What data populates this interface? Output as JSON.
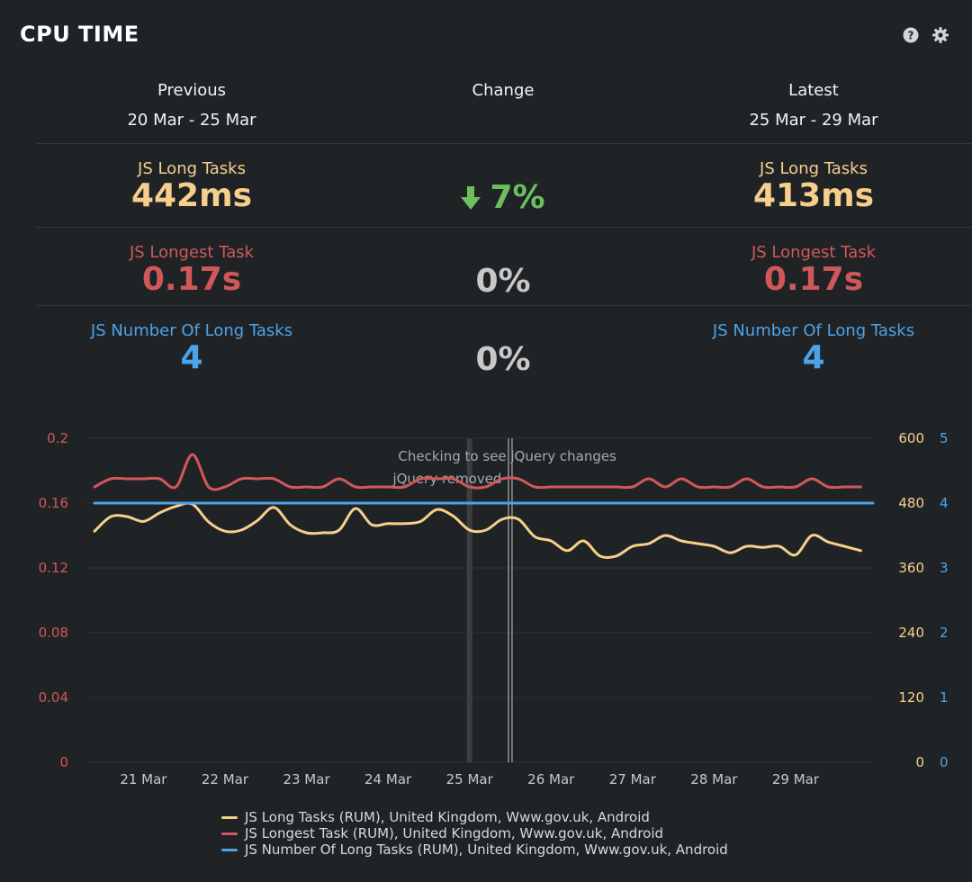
{
  "header": {
    "title": "CPU TIME",
    "help_icon": "help-circle-icon",
    "settings_icon": "gear-icon"
  },
  "columns": {
    "previous": {
      "title": "Previous",
      "range": "20 Mar - 25 Mar"
    },
    "change": {
      "title": "Change"
    },
    "latest": {
      "title": "Latest",
      "range": "25 Mar - 29 Mar"
    }
  },
  "metrics": [
    {
      "label": "JS Long Tasks",
      "previous": "442ms",
      "change": "7%",
      "change_direction": "down",
      "latest": "413ms",
      "color": "#f6cf8c"
    },
    {
      "label": "JS Longest Task",
      "previous": "0.17s",
      "change": "0%",
      "latest": "0.17s",
      "color": "#d0585a"
    },
    {
      "label": "JS Number Of Long Tasks",
      "previous": "4",
      "change": "0%",
      "latest": "4",
      "color": "#4da3e8"
    }
  ],
  "colors": {
    "background": "#202326",
    "positive_change": "#6dbe5e",
    "neutral_change": "#c8c8c8"
  },
  "chart_data": {
    "type": "line",
    "x_tick_labels": [
      "21 Mar",
      "22 Mar",
      "23 Mar",
      "24 Mar",
      "25 Mar",
      "26 Mar",
      "27 Mar",
      "28 Mar",
      "29 Mar"
    ],
    "x_range": [
      20.3,
      29.95
    ],
    "y_left": {
      "ticks": [
        "0",
        "0.04",
        "0.08",
        "0.12",
        "0.16",
        "0.2"
      ],
      "range": [
        0,
        0.2
      ],
      "color": "#d0585a"
    },
    "y_right1": {
      "ticks": [
        "0",
        "120",
        "240",
        "360",
        "480",
        "600"
      ],
      "range": [
        0,
        600
      ],
      "color": "#f6cf8c"
    },
    "y_right2": {
      "ticks": [
        "0",
        "1",
        "2",
        "3",
        "4",
        "5"
      ],
      "range": [
        0,
        5
      ],
      "color": "#4da3e8"
    },
    "grid": true,
    "annotations": [
      {
        "text": "Checking to see jQuery changes",
        "x": 25.0
      },
      {
        "text": "jQuery removed",
        "x": 25.5
      }
    ],
    "series": [
      {
        "name": "JS Long Tasks (RUM), United Kingdom, Www.gov.uk, Android",
        "axis": "right1",
        "color": "#f6cf8c",
        "x": [
          20.4,
          20.6,
          20.8,
          21.0,
          21.2,
          21.4,
          21.6,
          21.8,
          22.0,
          22.2,
          22.4,
          22.6,
          22.8,
          23.0,
          23.2,
          23.4,
          23.6,
          23.8,
          24.0,
          24.2,
          24.4,
          24.6,
          24.8,
          25.0,
          25.2,
          25.4,
          25.6,
          25.8,
          26.0,
          26.2,
          26.4,
          26.6,
          26.8,
          27.0,
          27.2,
          27.4,
          27.6,
          27.8,
          28.0,
          28.2,
          28.4,
          28.6,
          28.8,
          29.0,
          29.2,
          29.4,
          29.6,
          29.8
        ],
        "y": [
          428,
          455,
          455,
          446,
          462,
          474,
          478,
          445,
          428,
          430,
          448,
          472,
          440,
          425,
          425,
          430,
          470,
          440,
          442,
          442,
          446,
          468,
          456,
          430,
          430,
          450,
          450,
          418,
          410,
          392,
          410,
          382,
          382,
          400,
          405,
          420,
          410,
          405,
          400,
          388,
          400,
          398,
          400,
          384,
          420,
          408,
          400,
          392
        ]
      },
      {
        "name": "JS Longest Task (RUM), United Kingdom, Www.gov.uk, Android",
        "axis": "left",
        "color": "#d0585a",
        "x": [
          20.4,
          20.6,
          20.8,
          21.0,
          21.2,
          21.4,
          21.6,
          21.8,
          22.0,
          22.2,
          22.4,
          22.6,
          22.8,
          23.0,
          23.2,
          23.4,
          23.6,
          23.8,
          24.0,
          24.2,
          24.4,
          24.6,
          24.8,
          25.0,
          25.2,
          25.4,
          25.6,
          25.8,
          26.0,
          26.2,
          26.4,
          26.6,
          26.8,
          27.0,
          27.2,
          27.4,
          27.6,
          27.8,
          28.0,
          28.2,
          28.4,
          28.6,
          28.8,
          29.0,
          29.2,
          29.4,
          29.6,
          29.8
        ],
        "y": [
          0.17,
          0.175,
          0.175,
          0.175,
          0.175,
          0.17,
          0.19,
          0.17,
          0.17,
          0.175,
          0.175,
          0.175,
          0.17,
          0.17,
          0.17,
          0.175,
          0.17,
          0.17,
          0.17,
          0.17,
          0.175,
          0.175,
          0.175,
          0.17,
          0.17,
          0.175,
          0.175,
          0.17,
          0.17,
          0.17,
          0.17,
          0.17,
          0.17,
          0.17,
          0.175,
          0.17,
          0.175,
          0.17,
          0.17,
          0.17,
          0.175,
          0.17,
          0.17,
          0.17,
          0.175,
          0.17,
          0.17,
          0.17
        ]
      },
      {
        "name": "JS Number Of Long Tasks (RUM), United Kingdom, Www.gov.uk, Android",
        "axis": "right2",
        "color": "#4da3e8",
        "x": [
          20.4,
          29.95
        ],
        "y": [
          4,
          4
        ]
      }
    ]
  }
}
